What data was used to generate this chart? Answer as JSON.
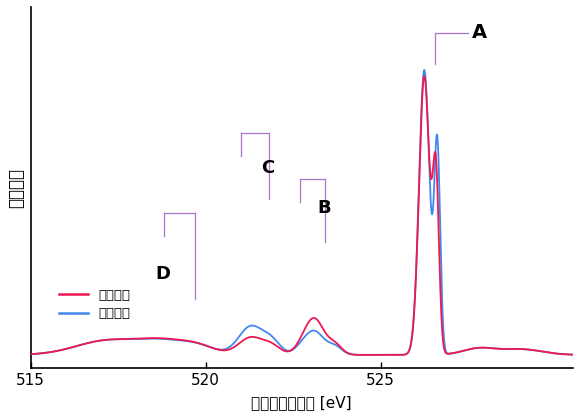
{
  "x_min": 515,
  "x_max": 530.5,
  "x_ticks": [
    515,
    520,
    525
  ],
  "xlabel": "発光エネルギー [eV]",
  "ylabel": "発光強度",
  "red_color": "#f01850",
  "blue_color": "#4488ee",
  "annot_color": "#aa77cc",
  "legend_red": "垂直偏光",
  "legend_blue": "水平偏光",
  "background": "#ffffff"
}
